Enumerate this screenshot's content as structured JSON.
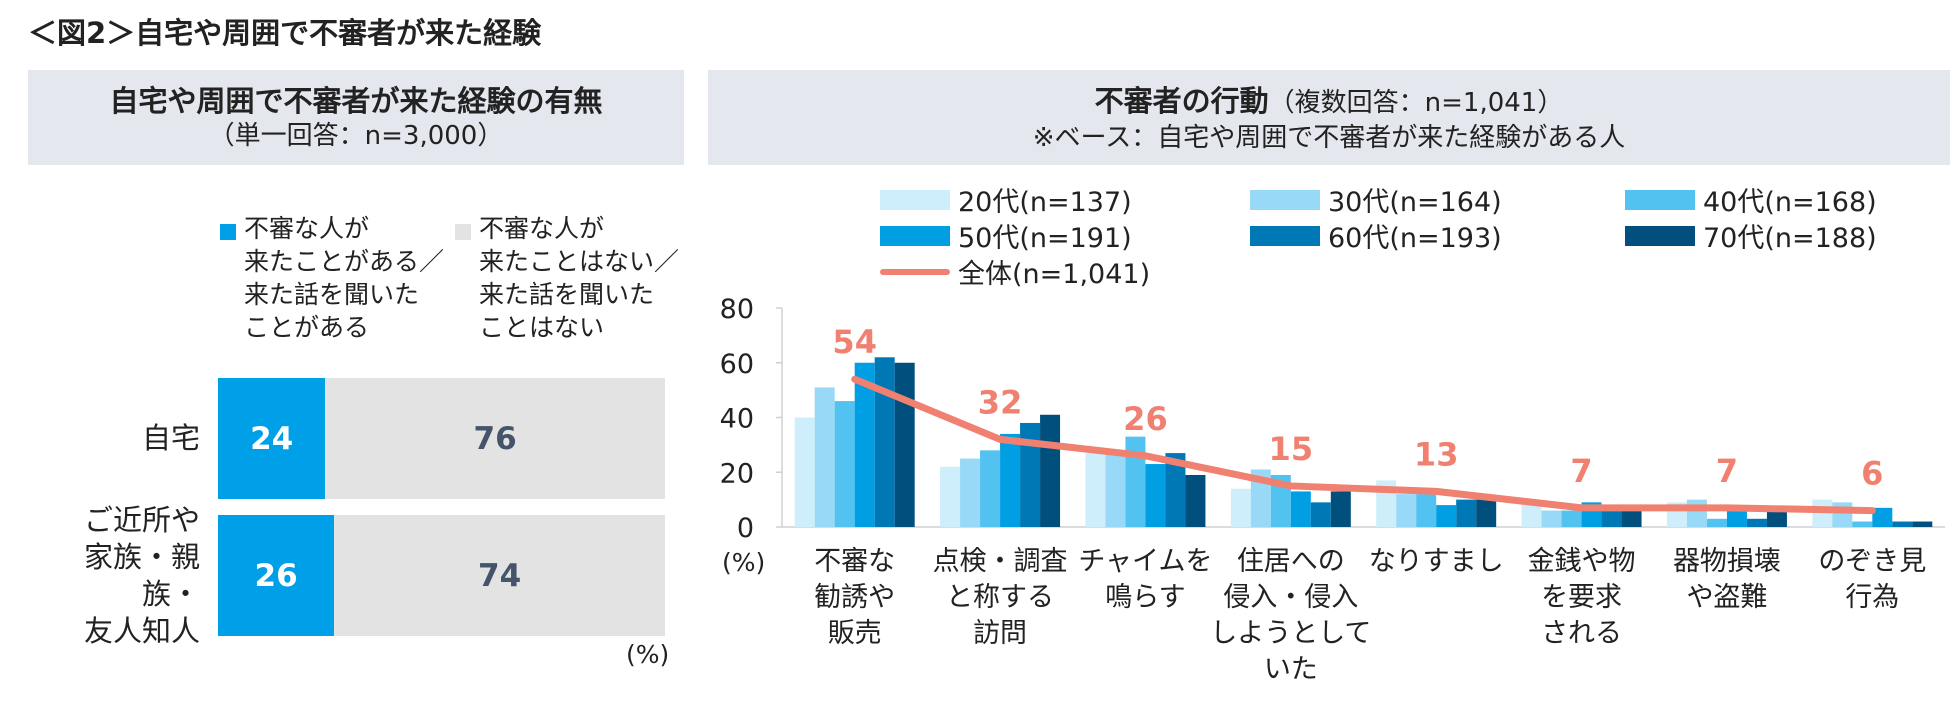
{
  "title": "＜図2＞自宅や周囲で不審者が来た経験",
  "left_panel": {
    "heading": "自宅や周囲で不審者が来た経験の有無",
    "subheading": "（単一回答：n=3,000）",
    "legend": [
      {
        "lines": [
          "不審な人が",
          "来たことがある／",
          "来た話を聞いた",
          "ことがある"
        ],
        "color": "#00a0e9"
      },
      {
        "lines": [
          "不審な人が",
          "来たことはない／",
          "来た話を聞いた",
          "ことはない"
        ],
        "color": "#e3e3e3"
      }
    ],
    "rows": [
      {
        "label_lines": [
          "自宅"
        ],
        "yes": "24",
        "no": "76"
      },
      {
        "label_lines": [
          "ご近所や",
          "家族・親族・",
          "友人知人"
        ],
        "yes": "26",
        "no": "74"
      }
    ],
    "unit": "(%)"
  },
  "right_panel": {
    "heading": "不審者の行動",
    "heading_sub": "（複数回答：n=1,041）",
    "subheading": "※ベース：自宅や周囲で不審者が来た経験がある人",
    "unit": "(%)"
  },
  "chart_data": [
    {
      "type": "bar",
      "orientation": "horizontal-stacked",
      "title": "自宅や周囲で不審者が来た経験の有無",
      "categories": [
        "自宅",
        "ご近所や家族・親族・友人知人"
      ],
      "series": [
        {
          "name": "不審な人が来たことがある／来た話を聞いたことがある",
          "values": [
            24,
            26
          ],
          "color": "#00a0e9"
        },
        {
          "name": "不審な人が来たことはない／来た話を聞いたことはない",
          "values": [
            76,
            74
          ],
          "color": "#e3e3e3"
        }
      ],
      "xlim": [
        0,
        100
      ]
    },
    {
      "type": "bar",
      "title": "不審者の行動",
      "ylim": [
        0,
        80
      ],
      "yticks": [
        "0",
        "20",
        "40",
        "60",
        "80"
      ],
      "ylabel": "(%)",
      "categories": [
        [
          "不審な",
          "勧誘や",
          "販売"
        ],
        [
          "点検・調査",
          "と称する",
          "訪問"
        ],
        [
          "チャイムを",
          "鳴らす"
        ],
        [
          "住居への",
          "侵入・侵入",
          "しようとして",
          "いた"
        ],
        [
          "なりすまし"
        ],
        [
          "金銭や物",
          "を要求",
          "される"
        ],
        [
          "器物損壊",
          "や盗難"
        ],
        [
          "のぞき見",
          "行為"
        ]
      ],
      "series": [
        {
          "name": "20代(n=137)",
          "color": "#cdeefa",
          "values": [
            40,
            22,
            27,
            14,
            17,
            8,
            9,
            10
          ]
        },
        {
          "name": "30代(n=164)",
          "color": "#97d9f6",
          "values": [
            51,
            25,
            27,
            21,
            12,
            6,
            10,
            9
          ]
        },
        {
          "name": "40代(n=168)",
          "color": "#52c3f1",
          "values": [
            46,
            28,
            33,
            19,
            12,
            6,
            3,
            2
          ]
        },
        {
          "name": "50代(n=191)",
          "color": "#009fe3",
          "values": [
            60,
            34,
            23,
            13,
            8,
            9,
            8,
            7
          ]
        },
        {
          "name": "60代(n=193)",
          "color": "#0078b6",
          "values": [
            62,
            38,
            27,
            9,
            10,
            7,
            3,
            2
          ]
        },
        {
          "name": "70代(n=188)",
          "color": "#004f7c",
          "values": [
            60,
            41,
            19,
            13,
            10,
            7,
            6,
            2
          ]
        }
      ],
      "line": {
        "name": "全体(n=1,041)",
        "color": "#f08070",
        "values": [
          54,
          32,
          26,
          15,
          13,
          7,
          7,
          6
        ],
        "labels": [
          "54",
          "32",
          "26",
          "15",
          "13",
          "7",
          "7",
          "6"
        ]
      }
    }
  ]
}
